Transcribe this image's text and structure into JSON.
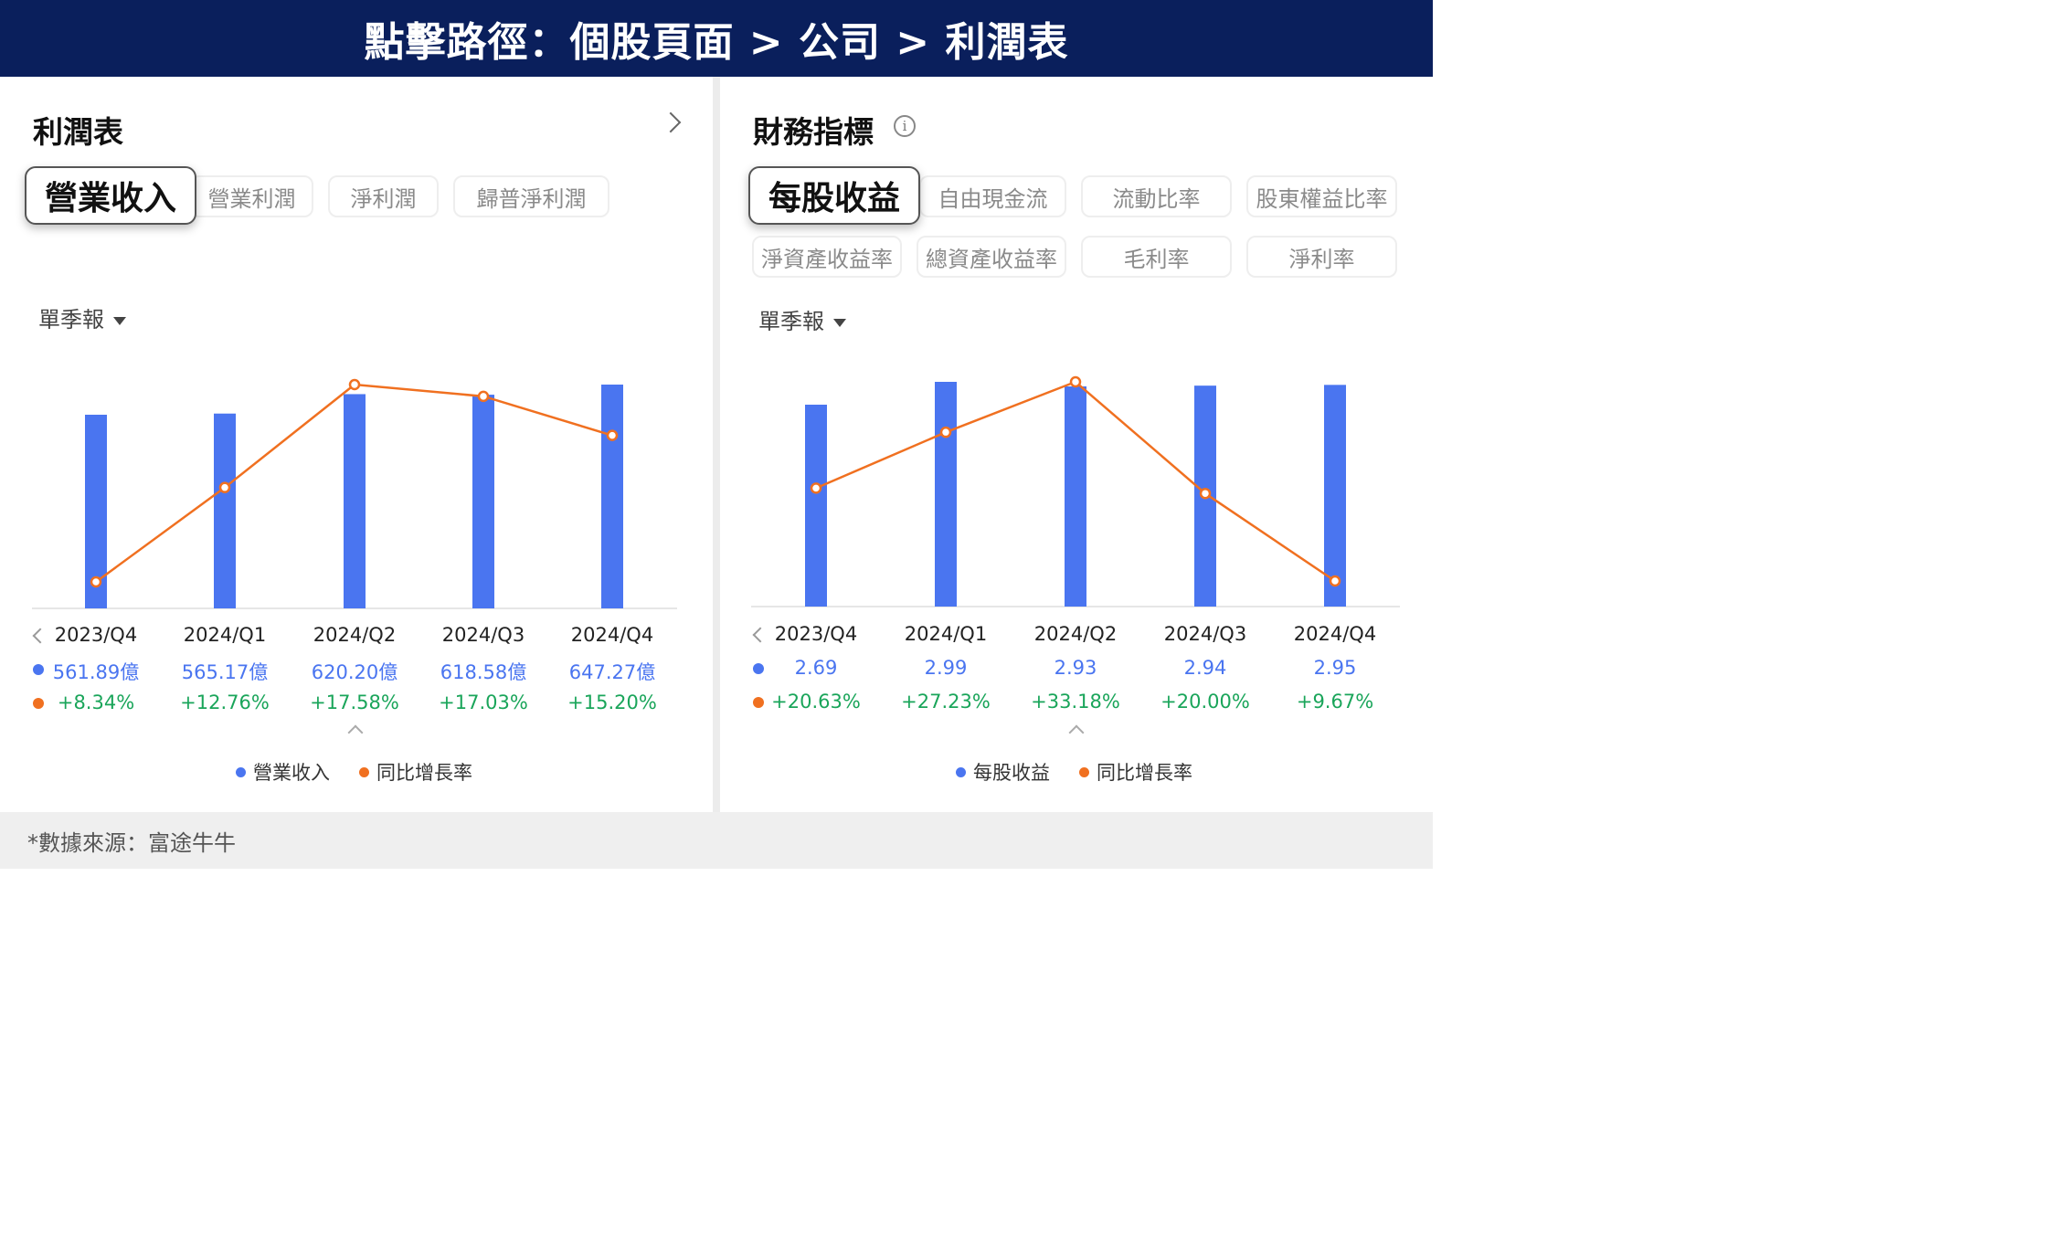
{
  "banner": {
    "title": "點擊路徑：個股頁面 > 公司 > 利潤表"
  },
  "footer": {
    "source": "*數據來源：富途牛牛"
  },
  "colors": {
    "bar": "#4a75f0",
    "line": "#f07020",
    "positive": "#1aa55a",
    "banner": "#0a1f5c"
  },
  "left": {
    "title": "利潤表",
    "tabs": [
      "營業收入",
      "營業利潤",
      "淨利潤",
      "歸普淨利潤"
    ],
    "active_tab": "營業收入",
    "period": "單季報",
    "legend": [
      "營業收入",
      "同比增長率"
    ]
  },
  "right": {
    "title": "財務指標",
    "tabs_row1": [
      "每股收益",
      "自由現金流",
      "流動比率",
      "股東權益比率"
    ],
    "tabs_row2": [
      "淨資產收益率",
      "總資產收益率",
      "毛利率",
      "淨利率"
    ],
    "active_tab": "每股收益",
    "period": "單季報",
    "legend": [
      "每股收益",
      "同比增長率"
    ]
  },
  "chart_data": [
    {
      "type": "bar",
      "categories": [
        "2023/Q4",
        "2024/Q1",
        "2024/Q2",
        "2024/Q3",
        "2024/Q4"
      ],
      "series": [
        {
          "name": "營業收入",
          "type": "bar",
          "values": [
            561.89,
            565.17,
            620.2,
            618.58,
            647.27
          ],
          "labels": [
            "561.89億",
            "565.17億",
            "620.20億",
            "618.58億",
            "647.27億"
          ]
        },
        {
          "name": "同比增長率",
          "type": "line",
          "values": [
            8.34,
            12.76,
            17.58,
            17.03,
            15.2
          ],
          "labels": [
            "+8.34%",
            "+12.76%",
            "+17.58%",
            "+17.03%",
            "+15.20%"
          ]
        }
      ]
    },
    {
      "type": "bar",
      "categories": [
        "2023/Q4",
        "2024/Q1",
        "2024/Q2",
        "2024/Q3",
        "2024/Q4"
      ],
      "series": [
        {
          "name": "每股收益",
          "type": "bar",
          "values": [
            2.69,
            2.99,
            2.93,
            2.94,
            2.95
          ],
          "labels": [
            "2.69",
            "2.99",
            "2.93",
            "2.94",
            "2.95"
          ]
        },
        {
          "name": "同比增長率",
          "type": "line",
          "values": [
            20.63,
            27.23,
            33.18,
            20.0,
            9.67
          ],
          "labels": [
            "+20.63%",
            "+27.23%",
            "+33.18%",
            "+20.00%",
            "+9.67%"
          ]
        }
      ]
    }
  ]
}
